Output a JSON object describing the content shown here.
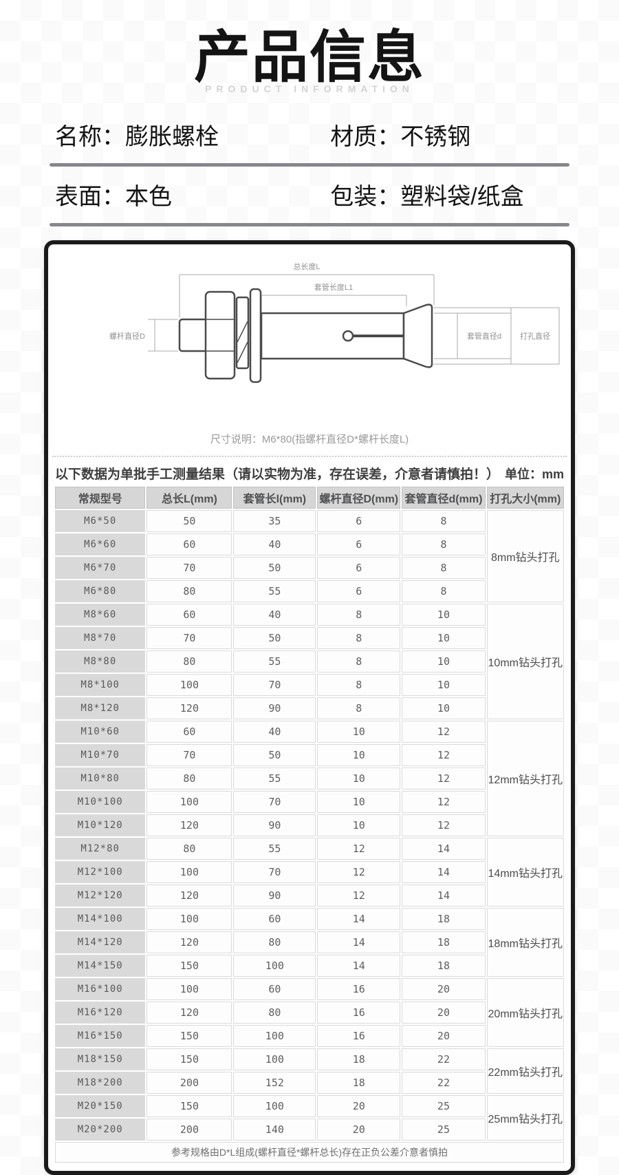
{
  "page": {
    "title": "产品信息",
    "subtitle": "PRODUCT INFORMATION"
  },
  "attributes": [
    {
      "label": "名称：",
      "value": "膨胀螺栓"
    },
    {
      "label": "材质：",
      "value": "不锈钢"
    },
    {
      "label": "表面：",
      "value": "本色"
    },
    {
      "label": "包装：",
      "value": "塑料袋/纸盒"
    }
  ],
  "diagram": {
    "labels": {
      "total_length": "总长度L",
      "sleeve_length": "套管长度L1",
      "screw_diameter": "螺杆直径D",
      "sleeve_diameter": "套管直径d",
      "hole_diameter": "打孔直径"
    },
    "caption": "尺寸说明：M6*80(指螺杆直径D*螺杆长度L)"
  },
  "table": {
    "note_left": "以下数据为单批手工测量结果（请以实物为准，存在误差，介意者请慎拍！）",
    "note_right": "单位：mm",
    "headers": [
      "常规型号",
      "总长L(mm)",
      "套管长l(mm)",
      "螺杆直径D(mm)",
      "套管直径d(mm)",
      "打孔大小(mm)"
    ],
    "groups": [
      {
        "drill": "8mm钻头打孔",
        "rows": [
          [
            "M6*50",
            "50",
            "35",
            "6",
            "8"
          ],
          [
            "M6*60",
            "60",
            "40",
            "6",
            "8"
          ],
          [
            "M6*70",
            "70",
            "50",
            "6",
            "8"
          ],
          [
            "M6*80",
            "80",
            "55",
            "6",
            "8"
          ]
        ]
      },
      {
        "drill": "10mm钻头打孔",
        "rows": [
          [
            "M8*60",
            "60",
            "40",
            "8",
            "10"
          ],
          [
            "M8*70",
            "70",
            "50",
            "8",
            "10"
          ],
          [
            "M8*80",
            "80",
            "55",
            "8",
            "10"
          ],
          [
            "M8*100",
            "100",
            "70",
            "8",
            "10"
          ],
          [
            "M8*120",
            "120",
            "90",
            "8",
            "10"
          ]
        ]
      },
      {
        "drill": "12mm钻头打孔",
        "rows": [
          [
            "M10*60",
            "60",
            "40",
            "10",
            "12"
          ],
          [
            "M10*70",
            "70",
            "50",
            "10",
            "12"
          ],
          [
            "M10*80",
            "80",
            "55",
            "10",
            "12"
          ],
          [
            "M10*100",
            "100",
            "70",
            "10",
            "12"
          ],
          [
            "M10*120",
            "120",
            "90",
            "10",
            "12"
          ]
        ]
      },
      {
        "drill": "14mm钻头打孔",
        "rows": [
          [
            "M12*80",
            "80",
            "55",
            "12",
            "14"
          ],
          [
            "M12*100",
            "100",
            "70",
            "12",
            "14"
          ],
          [
            "M12*120",
            "120",
            "90",
            "12",
            "14"
          ]
        ]
      },
      {
        "drill": "18mm钻头打孔",
        "rows": [
          [
            "M14*100",
            "100",
            "60",
            "14",
            "18"
          ],
          [
            "M14*120",
            "120",
            "80",
            "14",
            "18"
          ],
          [
            "M14*150",
            "150",
            "100",
            "14",
            "18"
          ]
        ]
      },
      {
        "drill": "20mm钻头打孔",
        "rows": [
          [
            "M16*100",
            "100",
            "60",
            "16",
            "20"
          ],
          [
            "M16*120",
            "120",
            "80",
            "16",
            "20"
          ],
          [
            "M16*150",
            "150",
            "100",
            "16",
            "20"
          ]
        ]
      },
      {
        "drill": "22mm钻头打孔",
        "rows": [
          [
            "M18*150",
            "150",
            "100",
            "18",
            "22"
          ],
          [
            "M18*200",
            "200",
            "152",
            "18",
            "22"
          ]
        ]
      },
      {
        "drill": "25mm钻头打孔",
        "rows": [
          [
            "M20*150",
            "150",
            "100",
            "20",
            "25"
          ],
          [
            "M20*200",
            "200",
            "140",
            "20",
            "25"
          ]
        ]
      }
    ],
    "footer": "参考规格由D*L组成(螺杆直径*螺杆总长)存在正负公差介意者慎拍"
  },
  "colors": {
    "card_border": "#1b1b1b",
    "divider": "#85878b",
    "table_header_bg": "#d6d6d6",
    "model_col_bg": "#d9d9d9",
    "subtitle": "#d3d3d3"
  }
}
